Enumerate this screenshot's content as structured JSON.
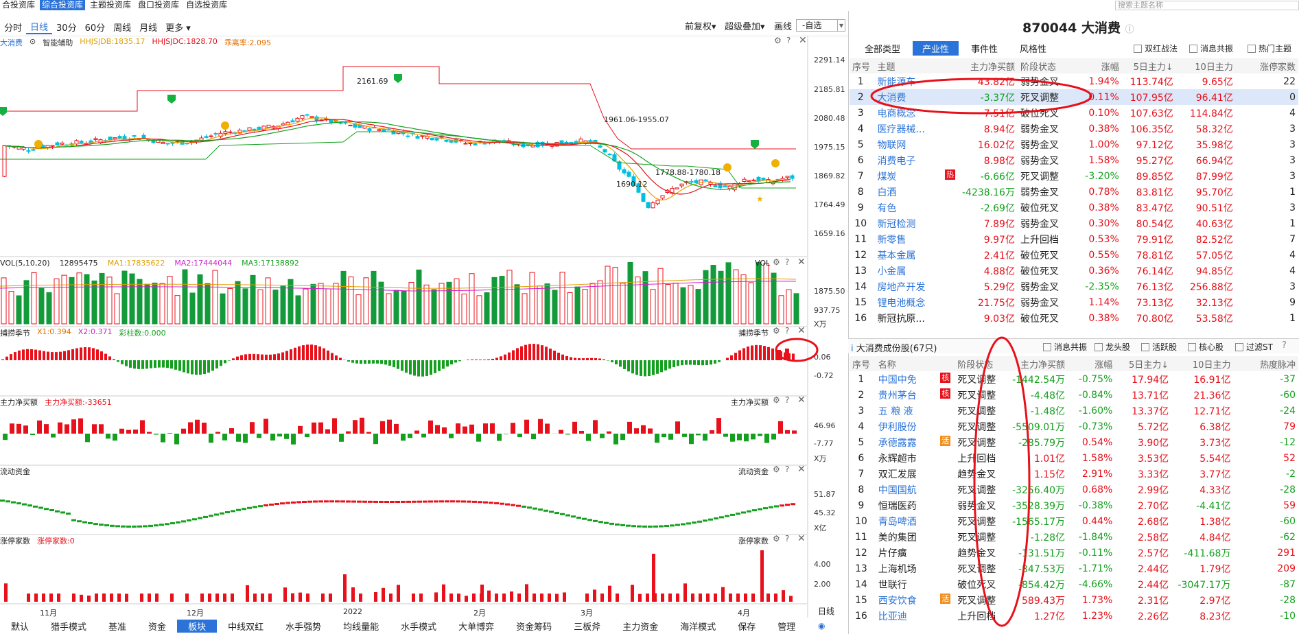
{
  "top_nav": [
    "合投资库",
    "综合投资库",
    "主题投资库",
    "盘口投资库",
    "自选投资库"
  ],
  "top_nav_active": 1,
  "search_placeholder": "搜索主题名称",
  "timeframes": [
    "分时",
    "日线",
    "30分",
    "60分",
    "周线",
    "月线",
    "更多 ▾"
  ],
  "timeframe_active": 1,
  "toolbar_right": {
    "fq": "前复权▾",
    "overlay": "超级叠加▾",
    "draw": "画线",
    "select": "-自选"
  },
  "title": {
    "code": "870044",
    "name": "大消费"
  },
  "main_panel": {
    "name": "大消费",
    "assist": "智能辅助",
    "hhjsjdb": "HHJSJDB:1835.17",
    "hhjsjdc": "HHJSJDC:1828.70",
    "dev": "乖离率:2.095",
    "annotations": [
      "2161.69",
      "1961.06-1955.07",
      "1778.88-1780.18",
      "1690.12"
    ],
    "yaxis": [
      "2291.14",
      "2185.81",
      "2080.48",
      "1975.15",
      "1869.82",
      "1764.49",
      "1659.16"
    ]
  },
  "vol_panel": {
    "title": "VOL(5,10,20)",
    "value": "12895475",
    "ma1": "MA1:17835622",
    "ma2": "MA2:17444044",
    "ma3": "MA3:17138892",
    "label": "VOL",
    "yaxis": [
      "1875.50",
      "937.75",
      "X万"
    ]
  },
  "season_panel": {
    "title": "捕捞季节",
    "x1": "X1:0.394",
    "x2": "X2:0.371",
    "cz": "彩柱数:0.000",
    "label": "捕捞季节",
    "yaxis": [
      "0.06",
      "-0.72"
    ]
  },
  "netbuy_panel": {
    "title": "主力净买额",
    "value": "主力净买额:-33651",
    "label": "主力净买额",
    "yaxis": [
      "46.96",
      "-7.77",
      "X万"
    ]
  },
  "flow_panel": {
    "title": "流动资金",
    "label": "流动资金",
    "yaxis": [
      "51.87",
      "45.32",
      "X亿"
    ]
  },
  "limit_panel": {
    "title": "涨停家数",
    "value": "涨停家数:0",
    "label": "涨停家数",
    "yaxis": [
      "4.00",
      "2.00"
    ]
  },
  "xaxis": [
    "11月",
    "12月",
    "2022",
    "2月",
    "3月",
    "4月"
  ],
  "day_label": "日线",
  "bottom_tabs": [
    "默认",
    "猎手模式",
    "基准",
    "资金",
    "板块",
    "中线双红",
    "水手强势",
    "均线量能",
    "水手模式",
    "大单博弈",
    "资金筹码",
    "三板斧",
    "主力资金",
    "海洋模式",
    "保存",
    "管理"
  ],
  "bottom_active": 4,
  "theme_tabs": [
    "全部类型",
    "产业性",
    "事件性",
    "风格性"
  ],
  "theme_tab_active": 1,
  "theme_checks": [
    "双红战法",
    "消息共振",
    "热门主题"
  ],
  "theme_headers": [
    "序号",
    "主题",
    "主力净买额",
    "阶段状态",
    "涨幅",
    "5日主力↓",
    "10日主力",
    "涨停家数"
  ],
  "themes": [
    [
      "1",
      "新能源车",
      "",
      "43.82亿",
      "弱势金叉",
      "1.94%",
      "113.74亿",
      "9.65亿",
      "22"
    ],
    [
      "2",
      "大消费",
      "",
      "-3.37亿",
      "死叉调整",
      "0.11%",
      "107.95亿",
      "96.41亿",
      "0"
    ],
    [
      "3",
      "电商概念",
      "",
      "7.51亿",
      "破位死叉",
      "0.10%",
      "107.63亿",
      "114.84亿",
      "4"
    ],
    [
      "4",
      "医疗器械...",
      "",
      "8.94亿",
      "弱势金叉",
      "0.38%",
      "106.35亿",
      "58.32亿",
      "3"
    ],
    [
      "5",
      "物联网",
      "",
      "16.02亿",
      "弱势金叉",
      "1.00%",
      "97.12亿",
      "35.98亿",
      "3"
    ],
    [
      "6",
      "消费电子",
      "",
      "8.98亿",
      "弱势金叉",
      "1.58%",
      "95.27亿",
      "66.94亿",
      "3"
    ],
    [
      "7",
      "煤炭",
      "热",
      "-6.66亿",
      "死叉调整",
      "-3.20%",
      "89.85亿",
      "87.99亿",
      "3"
    ],
    [
      "8",
      "白酒",
      "",
      "-4238.16万",
      "弱势金叉",
      "0.78%",
      "83.81亿",
      "95.70亿",
      "1"
    ],
    [
      "9",
      "有色",
      "",
      "-2.69亿",
      "破位死叉",
      "0.38%",
      "83.47亿",
      "90.51亿",
      "3"
    ],
    [
      "10",
      "新冠检测",
      "",
      "7.89亿",
      "弱势金叉",
      "0.30%",
      "80.54亿",
      "40.63亿",
      "1"
    ],
    [
      "11",
      "新零售",
      "",
      "9.97亿",
      "上升回档",
      "0.53%",
      "79.91亿",
      "82.52亿",
      "7"
    ],
    [
      "12",
      "基本金属",
      "",
      "2.41亿",
      "破位死叉",
      "0.55%",
      "78.81亿",
      "57.05亿",
      "4"
    ],
    [
      "13",
      "小金属",
      "",
      "4.88亿",
      "破位死叉",
      "0.36%",
      "76.14亿",
      "94.85亿",
      "4"
    ],
    [
      "14",
      "房地产开发",
      "",
      "5.29亿",
      "弱势金叉",
      "-2.35%",
      "76.13亿",
      "256.88亿",
      "3"
    ],
    [
      "15",
      "锂电池概念",
      "",
      "21.75亿",
      "弱势金叉",
      "1.14%",
      "73.13亿",
      "32.13亿",
      "9"
    ],
    [
      "16",
      "新冠抗原...",
      "",
      "9.03亿",
      "破位死叉",
      "0.38%",
      "70.80亿",
      "53.58亿",
      "1"
    ]
  ],
  "stock_section": {
    "title": "大消费成份股(67只)",
    "checks": [
      "消息共振",
      "龙头股",
      "活跃股",
      "核心股",
      "过滤ST"
    ]
  },
  "stock_headers": [
    "序号",
    "名称",
    "阶段状态",
    "主力净买额",
    "涨幅",
    "5日主力↓",
    "10日主力",
    "热度脉冲"
  ],
  "stocks": [
    [
      "1",
      "中国中免",
      "核",
      "死叉调整",
      "-1442.54万",
      "-0.75%",
      "17.94亿",
      "16.91亿",
      "-37"
    ],
    [
      "2",
      "贵州茅台",
      "核",
      "死叉调整",
      "-4.48亿",
      "-0.84%",
      "13.71亿",
      "21.36亿",
      "-60"
    ],
    [
      "3",
      "五 粮 液",
      "",
      "死叉调整",
      "-1.48亿",
      "-1.60%",
      "13.37亿",
      "12.71亿",
      "-24"
    ],
    [
      "4",
      "伊利股份",
      "",
      "死叉调整",
      "-5509.01万",
      "-0.73%",
      "5.72亿",
      "6.38亿",
      "79"
    ],
    [
      "5",
      "承德露露",
      "活",
      "死叉调整",
      "-285.79万",
      "0.54%",
      "3.90亿",
      "3.73亿",
      "-12"
    ],
    [
      "6",
      "永辉超市",
      "",
      "上升回档",
      "1.01亿",
      "1.58%",
      "3.53亿",
      "5.54亿",
      "52"
    ],
    [
      "7",
      "双汇发展",
      "",
      "趋势金叉",
      "1.15亿",
      "2.91%",
      "3.33亿",
      "3.77亿",
      "-2"
    ],
    [
      "8",
      "中国国航",
      "",
      "死叉调整",
      "-3256.40万",
      "0.68%",
      "2.99亿",
      "4.33亿",
      "-28"
    ],
    [
      "9",
      "恒瑞医药",
      "",
      "弱势金叉",
      "-3528.39万",
      "-0.38%",
      "2.70亿",
      "-4.41亿",
      "59"
    ],
    [
      "10",
      "青岛啤酒",
      "",
      "死叉调整",
      "-1565.17万",
      "0.44%",
      "2.68亿",
      "1.38亿",
      "-60"
    ],
    [
      "11",
      "美的集团",
      "",
      "死叉调整",
      "-1.28亿",
      "-1.84%",
      "2.58亿",
      "4.84亿",
      "-62"
    ],
    [
      "12",
      "片仔癀",
      "",
      "趋势金叉",
      "-131.51万",
      "-0.11%",
      "2.57亿",
      "-411.68万",
      "291"
    ],
    [
      "13",
      "上海机场",
      "",
      "死叉调整",
      "-847.53万",
      "-1.71%",
      "2.44亿",
      "1.79亿",
      "209"
    ],
    [
      "14",
      "世联行",
      "",
      "破位死叉",
      "-854.42万",
      "-4.66%",
      "2.44亿",
      "-3047.17万",
      "-87"
    ],
    [
      "15",
      "西安饮食",
      "活",
      "死叉调整",
      "589.43万",
      "1.73%",
      "2.31亿",
      "2.97亿",
      "-28"
    ],
    [
      "16",
      "比亚迪",
      "",
      "上升回档",
      "1.27亿",
      "1.23%",
      "2.26亿",
      "8.23亿",
      "-10"
    ]
  ]
}
